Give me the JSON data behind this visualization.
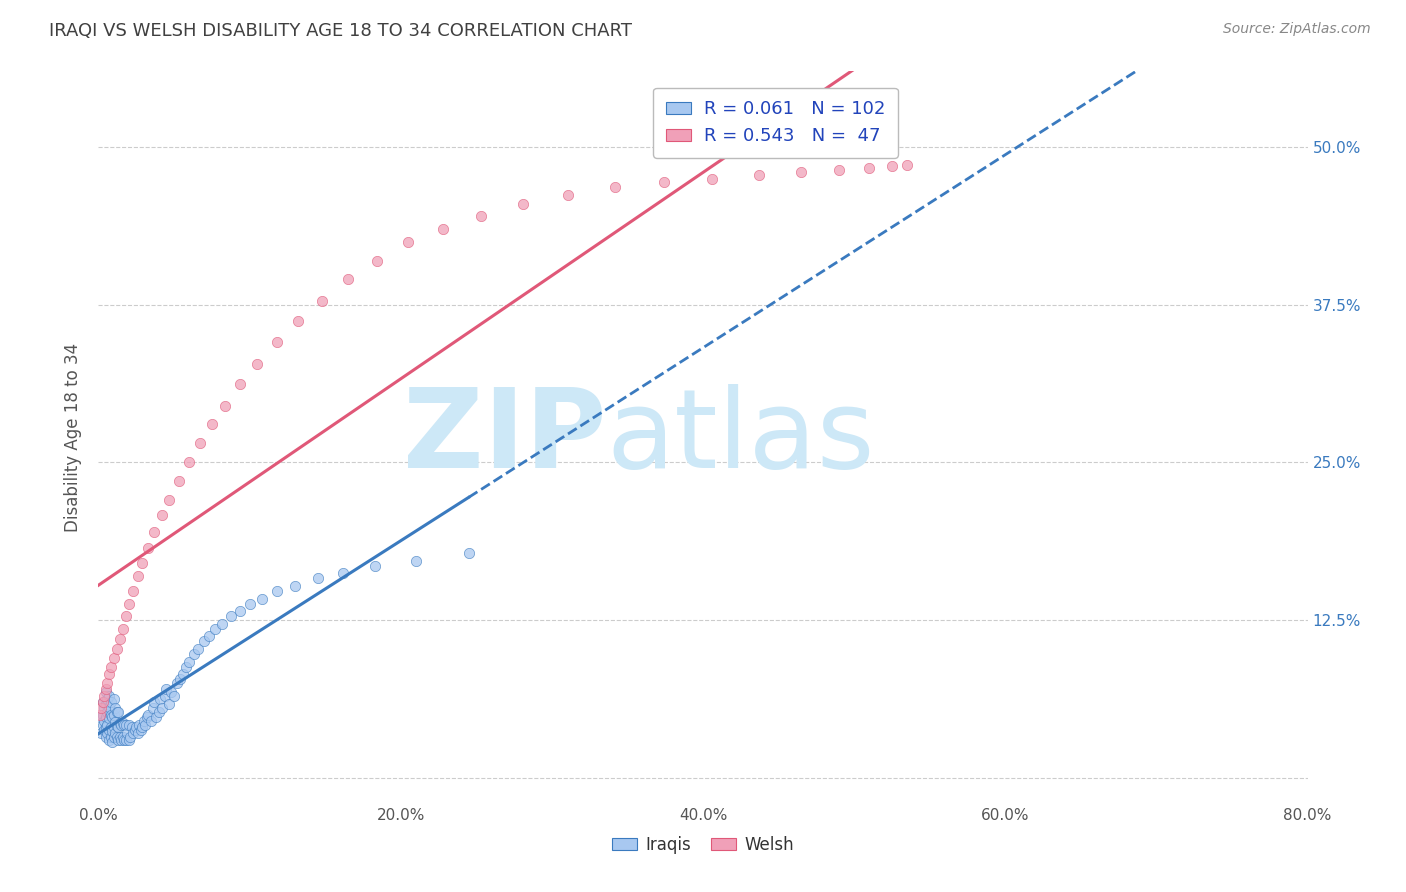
{
  "title": "IRAQI VS WELSH DISABILITY AGE 18 TO 34 CORRELATION CHART",
  "source_text": "Source: ZipAtlas.com",
  "ylabel": "Disability Age 18 to 34",
  "xlim": [
    0.0,
    0.8
  ],
  "ylim": [
    -0.02,
    0.56
  ],
  "xticks": [
    0.0,
    0.2,
    0.4,
    0.6,
    0.8
  ],
  "xtick_labels": [
    "0.0%",
    "20.0%",
    "40.0%",
    "60.0%",
    "80.0%"
  ],
  "yticks": [
    0.0,
    0.125,
    0.25,
    0.375,
    0.5
  ],
  "ytick_labels": [
    "",
    "12.5%",
    "25.0%",
    "37.5%",
    "50.0%"
  ],
  "background_color": "#ffffff",
  "grid_color": "#cccccc",
  "title_color": "#404040",
  "title_fontsize": 13,
  "watermark_zip": "ZIP",
  "watermark_atlas": "atlas",
  "watermark_color": "#cde8f7",
  "legend_R1": "0.061",
  "legend_N1": "102",
  "legend_R2": "0.543",
  "legend_N2": " 47",
  "iraqis_color": "#a8c8f0",
  "welsh_color": "#f0a0b8",
  "iraqis_line_color": "#3a7abf",
  "welsh_line_color": "#e05878",
  "iraqis_label": "Iraqis",
  "welsh_label": "Welsh",
  "legend_text_color": "#2244bb",
  "iraqis_x": [
    0.001,
    0.002,
    0.003,
    0.003,
    0.003,
    0.004,
    0.004,
    0.004,
    0.005,
    0.005,
    0.005,
    0.005,
    0.005,
    0.006,
    0.006,
    0.006,
    0.006,
    0.007,
    0.007,
    0.007,
    0.007,
    0.007,
    0.008,
    0.008,
    0.008,
    0.008,
    0.009,
    0.009,
    0.009,
    0.01,
    0.01,
    0.01,
    0.01,
    0.011,
    0.011,
    0.011,
    0.012,
    0.012,
    0.012,
    0.013,
    0.013,
    0.013,
    0.014,
    0.014,
    0.015,
    0.015,
    0.016,
    0.016,
    0.017,
    0.017,
    0.018,
    0.018,
    0.019,
    0.02,
    0.02,
    0.021,
    0.022,
    0.023,
    0.024,
    0.025,
    0.026,
    0.027,
    0.028,
    0.029,
    0.03,
    0.031,
    0.032,
    0.033,
    0.035,
    0.036,
    0.037,
    0.038,
    0.04,
    0.041,
    0.042,
    0.044,
    0.045,
    0.047,
    0.048,
    0.05,
    0.052,
    0.054,
    0.056,
    0.058,
    0.06,
    0.063,
    0.066,
    0.07,
    0.073,
    0.077,
    0.082,
    0.088,
    0.094,
    0.1,
    0.108,
    0.118,
    0.13,
    0.145,
    0.162,
    0.183,
    0.21,
    0.245
  ],
  "iraqis_y": [
    0.048,
    0.035,
    0.042,
    0.05,
    0.06,
    0.038,
    0.045,
    0.055,
    0.032,
    0.04,
    0.048,
    0.058,
    0.068,
    0.035,
    0.042,
    0.052,
    0.062,
    0.03,
    0.038,
    0.047,
    0.056,
    0.065,
    0.032,
    0.04,
    0.05,
    0.06,
    0.028,
    0.037,
    0.048,
    0.032,
    0.04,
    0.05,
    0.062,
    0.035,
    0.044,
    0.055,
    0.032,
    0.041,
    0.052,
    0.03,
    0.04,
    0.052,
    0.032,
    0.043,
    0.03,
    0.042,
    0.032,
    0.043,
    0.03,
    0.042,
    0.03,
    0.042,
    0.035,
    0.03,
    0.042,
    0.032,
    0.04,
    0.035,
    0.038,
    0.04,
    0.035,
    0.042,
    0.038,
    0.04,
    0.045,
    0.042,
    0.048,
    0.05,
    0.045,
    0.055,
    0.06,
    0.048,
    0.052,
    0.062,
    0.055,
    0.065,
    0.07,
    0.058,
    0.068,
    0.065,
    0.075,
    0.078,
    0.082,
    0.088,
    0.092,
    0.098,
    0.102,
    0.108,
    0.112,
    0.118,
    0.122,
    0.128,
    0.132,
    0.138,
    0.142,
    0.148,
    0.152,
    0.158,
    0.162,
    0.168,
    0.172,
    0.178
  ],
  "welsh_x": [
    0.001,
    0.002,
    0.003,
    0.004,
    0.005,
    0.006,
    0.007,
    0.008,
    0.01,
    0.012,
    0.014,
    0.016,
    0.018,
    0.02,
    0.023,
    0.026,
    0.029,
    0.033,
    0.037,
    0.042,
    0.047,
    0.053,
    0.06,
    0.067,
    0.075,
    0.084,
    0.094,
    0.105,
    0.118,
    0.132,
    0.148,
    0.165,
    0.184,
    0.205,
    0.228,
    0.253,
    0.281,
    0.311,
    0.342,
    0.374,
    0.406,
    0.437,
    0.465,
    0.49,
    0.51,
    0.525,
    0.535
  ],
  "welsh_y": [
    0.05,
    0.055,
    0.06,
    0.065,
    0.07,
    0.075,
    0.082,
    0.088,
    0.095,
    0.102,
    0.11,
    0.118,
    0.128,
    0.138,
    0.148,
    0.16,
    0.17,
    0.182,
    0.195,
    0.208,
    0.22,
    0.235,
    0.25,
    0.265,
    0.28,
    0.295,
    0.312,
    0.328,
    0.345,
    0.362,
    0.378,
    0.395,
    0.41,
    0.425,
    0.435,
    0.445,
    0.455,
    0.462,
    0.468,
    0.472,
    0.475,
    0.478,
    0.48,
    0.482,
    0.483,
    0.485,
    0.486
  ]
}
